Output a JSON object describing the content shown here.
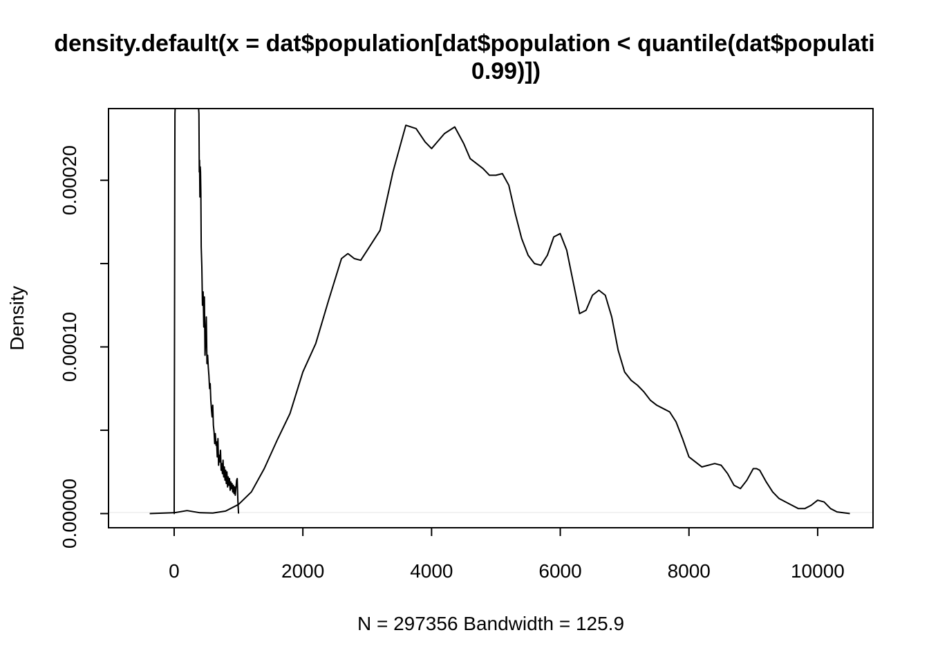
{
  "chart_data": {
    "type": "line",
    "title": {
      "line1": "density.default(x = dat$population[dat$population < quantile(dat$populati",
      "line2": "0.99)])"
    },
    "xlabel": "N = 297356   Bandwidth = 125.9",
    "ylabel": "Density",
    "xlim": [
      -1020,
      10860
    ],
    "ylim": [
      -8.5e-06,
      0.000243
    ],
    "x_ticks": [
      0,
      2000,
      4000,
      6000,
      8000,
      10000
    ],
    "x_tick_labels": [
      "0",
      "2000",
      "4000",
      "6000",
      "8000",
      "10000"
    ],
    "y_ticks": [
      0,
      5e-05,
      0.0001,
      0.00015,
      0.0002
    ],
    "y_tick_labels": [
      "0.00000",
      "",
      "0.00010",
      "",
      "0.00020"
    ],
    "grid": false,
    "zero_reference_line": true,
    "series": [
      {
        "x": [
          -380,
          0,
          200,
          400,
          600,
          800,
          1000,
          1200,
          1400,
          1600,
          1800,
          2000,
          2200,
          2400,
          2600,
          2700,
          2800,
          2900,
          3000,
          3200,
          3400,
          3600,
          3760,
          3900,
          4000,
          4200,
          4360,
          4500,
          4600,
          4800,
          4900,
          5000,
          5100,
          5200,
          5300,
          5400,
          5500,
          5600,
          5700,
          5800,
          5900,
          6000,
          6100,
          6200,
          6300,
          6400,
          6500,
          6600,
          6700,
          6800,
          6900,
          7000,
          7100,
          7200,
          7300,
          7400,
          7500,
          7600,
          7700,
          7800,
          7900,
          8000,
          8200,
          8400,
          8500,
          8600,
          8700,
          8800,
          8900,
          9000,
          9050,
          9100,
          9200,
          9300,
          9400,
          9600,
          9700,
          9800,
          9900,
          10000,
          10100,
          10200,
          10300,
          10500
        ],
        "y": [
          0,
          5e-07,
          1.8e-06,
          5e-07,
          3e-07,
          1.5e-06,
          5.5e-06,
          1.3e-05,
          2.7e-05,
          4.4e-05,
          6e-05,
          8.5e-05,
          0.000102,
          0.000128,
          0.000153,
          0.000156,
          0.000153,
          0.000152,
          0.000158,
          0.00017,
          0.000205,
          0.000233,
          0.000231,
          0.000223,
          0.000219,
          0.000228,
          0.000232,
          0.000222,
          0.000213,
          0.000207,
          0.000203,
          0.000203,
          0.000204,
          0.000197,
          0.00018,
          0.000165,
          0.000155,
          0.00015,
          0.000149,
          0.000155,
          0.000166,
          0.000168,
          0.000158,
          0.000139,
          0.00012,
          0.000122,
          0.000131,
          0.000134,
          0.000131,
          0.000118,
          9.8e-05,
          8.5e-05,
          8e-05,
          7.7e-05,
          7.3e-05,
          6.8e-05,
          6.5e-05,
          6.3e-05,
          6.1e-05,
          5.5e-05,
          4.5e-05,
          3.4e-05,
          2.8e-05,
          3e-05,
          2.9e-05,
          2.4e-05,
          1.7e-05,
          1.5e-05,
          2e-05,
          2.7e-05,
          2.7e-05,
          2.6e-05,
          1.9e-05,
          1.3e-05,
          9e-06,
          5e-06,
          3e-06,
          3e-06,
          5e-06,
          8e-06,
          7e-06,
          3e-06,
          1e-06,
          0
        ]
      },
      {
        "x": [
          -5,
          0,
          2,
          5,
          8,
          10,
          12,
          15,
          20,
          380,
          385,
          390,
          395,
          400,
          405,
          410,
          415,
          420,
          430,
          440,
          450,
          460,
          465,
          470,
          480,
          490,
          500,
          510,
          520,
          530,
          540,
          550,
          560,
          570,
          580,
          590,
          600,
          610,
          620,
          630,
          640,
          650,
          660,
          670,
          680,
          690,
          700,
          710,
          720,
          730,
          740,
          750,
          760,
          770,
          780,
          790,
          800,
          810,
          820,
          830,
          840,
          850,
          860,
          870,
          880,
          890,
          900,
          910,
          920,
          930,
          940,
          950,
          960,
          970,
          980,
          990,
          1000
        ],
        "y": [
          0,
          0,
          3e-05,
          9e-05,
          0.00016,
          0.00021,
          0.00024,
          0.00026,
          0.00028,
          0.00026,
          0.00024,
          0.000205,
          0.000212,
          0.00019,
          0.000208,
          0.000205,
          0.000192,
          0.00016,
          0.000148,
          0.000125,
          0.000133,
          0.000112,
          0.000118,
          0.00013,
          9.5e-05,
          0.000105,
          0.000118,
          9e-05,
          9.5e-05,
          8.8e-05,
          8.3e-05,
          7.5e-05,
          7.8e-05,
          6.8e-05,
          6.2e-05,
          5.8e-05,
          6.5e-05,
          5.3e-05,
          4.9e-05,
          4.2e-05,
          4.8e-05,
          4.1e-05,
          4.3e-05,
          3.4e-05,
          4.5e-05,
          2.9e-05,
          3.5e-05,
          3.1e-05,
          3.8e-05,
          2.6e-05,
          3e-05,
          2.4e-05,
          3.2e-05,
          2.2e-05,
          2.8e-05,
          2e-05,
          2.6e-05,
          1.8e-05,
          2.5e-05,
          1.6e-05,
          2.2e-05,
          1.7e-05,
          2.1e-05,
          1.4e-05,
          1.9e-05,
          1.5e-05,
          1.8e-05,
          1.3e-05,
          1.7e-05,
          1.2e-05,
          1.6e-05,
          1.1e-05,
          1.5e-05,
          2e-05,
          2.1e-05,
          8e-06,
          0
        ]
      }
    ]
  }
}
